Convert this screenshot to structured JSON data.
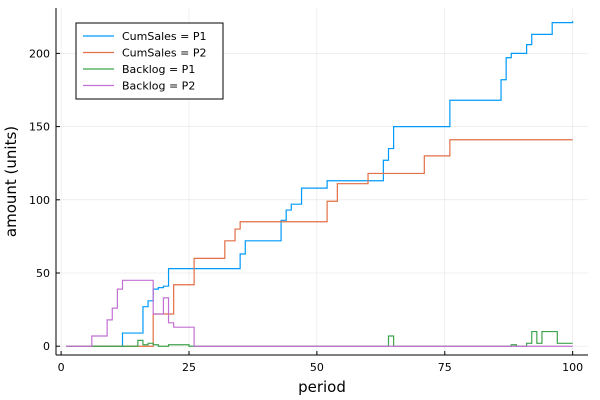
{
  "chart_data": {
    "type": "line",
    "step": "post",
    "xlabel": "period",
    "ylabel": "amount (units)",
    "xlim": [
      -1,
      103
    ],
    "ylim": [
      -6,
      231
    ],
    "xticks": [
      0,
      25,
      50,
      75,
      100
    ],
    "yticks": [
      0,
      50,
      100,
      150,
      200
    ],
    "grid": true,
    "legend_position": "top-left",
    "series": [
      {
        "name": "CumSales = P1",
        "color": "#009af9",
        "x": [
          1,
          12,
          16,
          17,
          18,
          19,
          20,
          21,
          35,
          36,
          43,
          44,
          45,
          47,
          52,
          63,
          64,
          65,
          76,
          86,
          87,
          88,
          91,
          92,
          96,
          100
        ],
        "y": [
          0,
          9,
          27,
          31,
          39,
          40,
          41,
          53,
          63,
          72,
          86,
          93,
          97,
          108,
          113,
          127,
          135,
          150,
          168,
          182,
          197,
          200,
          206,
          213,
          221,
          222
        ]
      },
      {
        "name": "CumSales = P2",
        "color": "#e26f46",
        "x": [
          1,
          18,
          22,
          26,
          32,
          34,
          35,
          52,
          54,
          60,
          71,
          76,
          100
        ],
        "y": [
          0,
          22,
          42,
          60,
          72,
          80,
          85,
          99,
          111,
          118,
          130,
          141,
          141
        ]
      },
      {
        "name": "Backlog = P1",
        "color": "#3da44d",
        "x": [
          1,
          15,
          16,
          17,
          18,
          19,
          21,
          25,
          64,
          65,
          88,
          89,
          91,
          92,
          93,
          94,
          97,
          100
        ],
        "y": [
          0,
          4,
          1,
          2,
          1,
          0,
          1,
          0,
          7,
          0,
          1,
          0,
          2,
          10,
          2,
          10,
          2,
          2
        ]
      },
      {
        "name": "Backlog = P2",
        "color": "#c271d2",
        "x": [
          1,
          6,
          9,
          10,
          11,
          12,
          18,
          20,
          21,
          22,
          26,
          100
        ],
        "y": [
          0,
          7,
          18,
          26,
          39,
          45,
          22,
          33,
          16,
          13,
          0,
          0
        ]
      }
    ]
  }
}
